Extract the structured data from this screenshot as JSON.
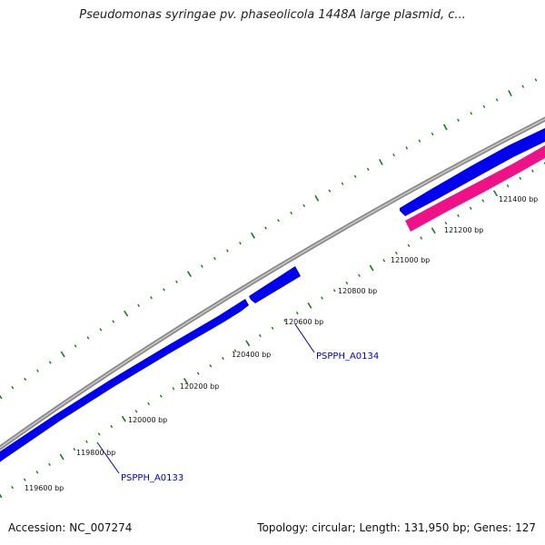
{
  "title": "Pseudomonas syringae pv. phaseolicola 1448A large plasmid, c...",
  "footer": {
    "accession": "Accession: NC_007274",
    "topology": "Topology: circular; Length: 131,950 bp; Genes: 127"
  },
  "colors": {
    "backbone": "#8a8a8a",
    "forward_gene": "#0000ee",
    "reverse_gene": "#ee1188",
    "tick": "#1a7a1a",
    "gene_label": "#0000cc"
  },
  "ticks": [
    {
      "position_bp": 119600,
      "label": "119600 bp"
    },
    {
      "position_bp": 119800,
      "label": "119800 bp"
    },
    {
      "position_bp": 120000,
      "label": "120000 bp"
    },
    {
      "position_bp": 120200,
      "label": "120200 bp"
    },
    {
      "position_bp": 120400,
      "label": "120400 bp"
    },
    {
      "position_bp": 120600,
      "label": "120600 bp"
    },
    {
      "position_bp": 120800,
      "label": "120800 bp"
    },
    {
      "position_bp": 121000,
      "label": "121000 bp"
    },
    {
      "position_bp": 121200,
      "label": "121200 bp"
    },
    {
      "position_bp": 121400,
      "label": "121400 bp"
    }
  ],
  "gene_labels": [
    {
      "name": "PSPPH_A0133"
    },
    {
      "name": "PSPPH_A0134"
    }
  ]
}
